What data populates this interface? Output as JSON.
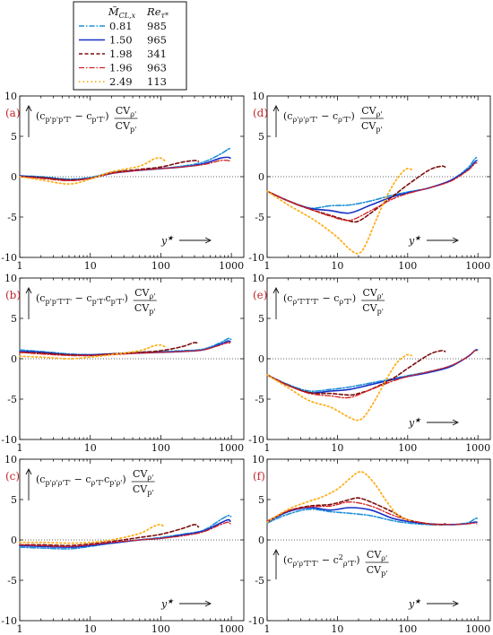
{
  "legend": {
    "header_mach": "M̃",
    "header_mach_sub": "CL,x",
    "header_re": "Re",
    "header_re_sub": "τ*",
    "entries": [
      {
        "mach": "0.81",
        "re": "985",
        "color": "#1f8fd6"
      },
      {
        "mach": "1.50",
        "re": "965",
        "color": "#1530c8"
      },
      {
        "mach": "1.98",
        "re": "341",
        "color": "#7a0d0d"
      },
      {
        "mach": "1.96",
        "re": "963",
        "color": "#d42020"
      },
      {
        "mach": "2.49",
        "re": "113",
        "color": "#ffae1a"
      }
    ]
  },
  "chart_data": [
    {
      "type": "line",
      "panel_label": "(a)",
      "annotation": "(c_{p'p'p'T'} − c_{p'T'}) CV_{ρ'}/CV_{p'}",
      "xlabel": "y*",
      "xscale": "log",
      "xlim": [
        1,
        1500
      ],
      "ylim": [
        -10,
        10
      ],
      "yticks": [
        10,
        5,
        0,
        -5,
        -10
      ],
      "xticks": [
        1,
        10,
        100,
        1000
      ],
      "series": [
        {
          "x": [
            1,
            2,
            5,
            10,
            20,
            50,
            100,
            200,
            400,
            700,
            900,
            985
          ],
          "y": [
            0.1,
            0.0,
            -0.3,
            -0.1,
            0.5,
            0.8,
            1.0,
            1.3,
            1.8,
            2.8,
            3.4,
            3.5
          ]
        },
        {
          "x": [
            1,
            2,
            5,
            10,
            20,
            50,
            100,
            200,
            400,
            700,
            900,
            965
          ],
          "y": [
            0.1,
            -0.1,
            -0.4,
            -0.2,
            0.4,
            0.8,
            1.0,
            1.2,
            1.6,
            2.3,
            2.4,
            2.3
          ]
        },
        {
          "x": [
            1,
            2,
            5,
            10,
            20,
            50,
            100,
            200,
            300,
            341
          ],
          "y": [
            0.0,
            -0.1,
            -0.4,
            -0.2,
            0.5,
            0.9,
            1.2,
            1.8,
            2.0,
            1.9
          ]
        },
        {
          "x": [
            1,
            2,
            5,
            10,
            20,
            50,
            100,
            200,
            400,
            700,
            900,
            963
          ],
          "y": [
            0.0,
            -0.2,
            -0.5,
            -0.2,
            0.4,
            0.8,
            1.0,
            1.2,
            1.5,
            2.0,
            2.0,
            1.9
          ]
        },
        {
          "x": [
            1,
            2,
            5,
            10,
            20,
            50,
            80,
            100,
            113
          ],
          "y": [
            0.0,
            -0.4,
            -0.9,
            -0.3,
            0.6,
            1.3,
            2.2,
            2.3,
            2.0
          ]
        }
      ]
    },
    {
      "type": "line",
      "panel_label": "(b)",
      "annotation": "(c_{p'p'T'T'} − c_{p'T'}c_{p'T'}) CV_{ρ'}/CV_{p'}",
      "xlabel": "",
      "xscale": "log",
      "xlim": [
        1,
        1500
      ],
      "ylim": [
        -10,
        10
      ],
      "yticks": [
        10,
        5,
        0,
        -5,
        -10
      ],
      "xticks": [
        1,
        10,
        100,
        1000
      ],
      "series": [
        {
          "x": [
            1,
            2,
            5,
            10,
            20,
            50,
            100,
            200,
            400,
            700,
            900,
            985
          ],
          "y": [
            1.1,
            0.9,
            0.6,
            0.5,
            0.6,
            0.8,
            0.9,
            1.0,
            1.2,
            2.0,
            2.5,
            2.4
          ]
        },
        {
          "x": [
            1,
            2,
            5,
            10,
            20,
            50,
            100,
            200,
            400,
            700,
            900,
            965
          ],
          "y": [
            0.9,
            0.8,
            0.5,
            0.5,
            0.6,
            0.7,
            0.8,
            0.9,
            1.1,
            1.8,
            2.2,
            2.1
          ]
        },
        {
          "x": [
            1,
            2,
            5,
            10,
            20,
            50,
            100,
            200,
            300,
            341
          ],
          "y": [
            0.8,
            0.7,
            0.5,
            0.4,
            0.6,
            0.8,
            1.0,
            1.5,
            2.0,
            1.8
          ]
        },
        {
          "x": [
            1,
            2,
            5,
            10,
            20,
            50,
            100,
            200,
            400,
            700,
            900,
            963
          ],
          "y": [
            0.8,
            0.6,
            0.4,
            0.4,
            0.5,
            0.7,
            0.8,
            0.9,
            1.1,
            1.7,
            2.0,
            1.9
          ]
        },
        {
          "x": [
            1,
            2,
            5,
            10,
            20,
            50,
            80,
            100,
            113
          ],
          "y": [
            0.3,
            0.2,
            0.0,
            0.2,
            0.5,
            1.0,
            1.6,
            1.7,
            1.5
          ]
        }
      ]
    },
    {
      "type": "line",
      "panel_label": "(c)",
      "annotation": "(c_{p'ρ'ρ'T'} − c_{ρ'T'}c_{p'ρ'}) CV_{ρ'}/CV_{p'}",
      "xlabel": "y*",
      "xscale": "log",
      "xlim": [
        1,
        1500
      ],
      "ylim": [
        -10,
        10
      ],
      "yticks": [
        10,
        5,
        0,
        -5,
        -10
      ],
      "xticks": [
        1,
        10,
        100,
        1000
      ],
      "series": [
        {
          "x": [
            1,
            2,
            5,
            10,
            20,
            50,
            100,
            200,
            400,
            700,
            900,
            985
          ],
          "y": [
            -0.9,
            -1.0,
            -1.1,
            -0.8,
            -0.4,
            0.0,
            0.3,
            0.7,
            1.2,
            2.5,
            3.0,
            2.9
          ]
        },
        {
          "x": [
            1,
            2,
            5,
            10,
            20,
            50,
            100,
            200,
            400,
            700,
            900,
            965
          ],
          "y": [
            -0.7,
            -0.8,
            -0.9,
            -0.7,
            -0.4,
            0.0,
            0.2,
            0.6,
            1.1,
            2.1,
            2.5,
            2.3
          ]
        },
        {
          "x": [
            1,
            2,
            5,
            10,
            20,
            50,
            100,
            200,
            300,
            341
          ],
          "y": [
            -0.6,
            -0.6,
            -0.7,
            -0.5,
            -0.2,
            0.3,
            0.7,
            1.4,
            1.9,
            1.6
          ]
        },
        {
          "x": [
            1,
            2,
            5,
            10,
            20,
            50,
            100,
            200,
            400,
            700,
            900,
            963
          ],
          "y": [
            -0.6,
            -0.7,
            -0.8,
            -0.6,
            -0.3,
            0.0,
            0.2,
            0.5,
            1.0,
            1.9,
            2.2,
            2.0
          ]
        },
        {
          "x": [
            1,
            2,
            5,
            10,
            20,
            50,
            80,
            100,
            113
          ],
          "y": [
            -0.3,
            -0.3,
            -0.4,
            -0.3,
            0.0,
            0.8,
            1.7,
            1.9,
            1.5
          ]
        }
      ]
    },
    {
      "type": "line",
      "panel_label": "(d)",
      "annotation": "(c_{ρ'ρ'ρ'T'} − c_{ρ'T'}) CV_{ρ'}/CV_{p'}",
      "xlabel": "y*",
      "xscale": "log",
      "xlim": [
        1,
        1500
      ],
      "ylim": [
        -10,
        10
      ],
      "yticks": [
        10,
        5,
        0,
        -5,
        -10
      ],
      "xticks": [
        1,
        10,
        100,
        1000
      ],
      "series": [
        {
          "x": [
            1,
            2,
            4,
            8,
            15,
            30,
            60,
            100,
            200,
            400,
            700,
            900,
            985
          ],
          "y": [
            -1.8,
            -3.0,
            -3.9,
            -3.6,
            -3.5,
            -3.0,
            -2.3,
            -1.9,
            -1.4,
            -0.5,
            1.0,
            2.2,
            2.4
          ]
        },
        {
          "x": [
            1,
            2,
            4,
            8,
            15,
            30,
            60,
            100,
            200,
            400,
            700,
            900,
            965
          ],
          "y": [
            -1.8,
            -3.0,
            -3.9,
            -4.2,
            -4.5,
            -3.5,
            -2.5,
            -2.0,
            -1.4,
            -0.5,
            0.8,
            1.8,
            2.0
          ]
        },
        {
          "x": [
            1,
            2,
            4,
            8,
            15,
            20,
            30,
            60,
            100,
            200,
            300,
            341
          ],
          "y": [
            -1.8,
            -3.0,
            -4.0,
            -4.8,
            -5.5,
            -5.5,
            -4.5,
            -2.5,
            -1.0,
            0.8,
            1.3,
            1.2
          ]
        },
        {
          "x": [
            1,
            2,
            4,
            8,
            15,
            30,
            60,
            100,
            200,
            400,
            700,
            900,
            963
          ],
          "y": [
            -1.8,
            -3.0,
            -4.0,
            -4.9,
            -5.4,
            -4.2,
            -2.8,
            -2.1,
            -1.4,
            -0.6,
            0.7,
            1.6,
            1.7
          ]
        },
        {
          "x": [
            1,
            2,
            4,
            6,
            10,
            15,
            20,
            25,
            35,
            50,
            70,
            90,
            100,
            113
          ],
          "y": [
            -1.8,
            -3.5,
            -5.0,
            -6.0,
            -7.5,
            -9.0,
            -9.5,
            -8.5,
            -5.5,
            -2.5,
            -0.3,
            0.8,
            1.0,
            0.9
          ]
        }
      ]
    },
    {
      "type": "line",
      "panel_label": "(e)",
      "annotation": "(c_{ρ'T'T'T'} − c_{ρ'T'}) CV_{ρ'}/CV_{p'}",
      "xlabel": "y*",
      "xscale": "log",
      "xlim": [
        1,
        1500
      ],
      "ylim": [
        -10,
        10
      ],
      "yticks": [
        10,
        5,
        0,
        -5,
        -10
      ],
      "xticks": [
        1,
        10,
        100,
        1000
      ],
      "series": [
        {
          "x": [
            1,
            2,
            4,
            8,
            15,
            30,
            60,
            100,
            200,
            400,
            700,
            900,
            985
          ],
          "y": [
            -2.0,
            -3.2,
            -4.0,
            -3.8,
            -3.5,
            -3.0,
            -2.5,
            -2.1,
            -1.6,
            -0.9,
            0.2,
            1.0,
            1.1
          ]
        },
        {
          "x": [
            1,
            2,
            4,
            8,
            15,
            30,
            60,
            100,
            200,
            400,
            700,
            900,
            965
          ],
          "y": [
            -2.0,
            -3.3,
            -4.2,
            -4.0,
            -3.8,
            -3.2,
            -2.6,
            -2.2,
            -1.7,
            -1.0,
            0.2,
            1.0,
            1.1
          ]
        },
        {
          "x": [
            1,
            2,
            4,
            8,
            15,
            20,
            30,
            60,
            100,
            200,
            300,
            341
          ],
          "y": [
            -2.0,
            -3.3,
            -4.2,
            -4.3,
            -4.5,
            -4.3,
            -3.8,
            -2.5,
            -1.2,
            0.5,
            1.0,
            0.9
          ]
        },
        {
          "x": [
            1,
            2,
            4,
            8,
            15,
            30,
            60,
            100,
            200,
            400,
            700,
            900,
            963
          ],
          "y": [
            -2.0,
            -3.3,
            -4.3,
            -4.6,
            -4.8,
            -3.8,
            -2.8,
            -2.2,
            -1.6,
            -0.9,
            0.2,
            1.0,
            1.0
          ]
        },
        {
          "x": [
            1,
            2,
            4,
            8,
            15,
            20,
            25,
            35,
            50,
            70,
            90,
            100,
            113
          ],
          "y": [
            -2.0,
            -3.6,
            -5.2,
            -6.0,
            -7.3,
            -7.6,
            -7.0,
            -5.0,
            -2.5,
            -0.5,
            0.3,
            0.5,
            0.4
          ]
        }
      ]
    },
    {
      "type": "line",
      "panel_label": "(f)",
      "annotation": "(c_{ρ'ρ'T'T'} − c²_{ρ'T'}) CV_{ρ'}/CV_{p'}",
      "xlabel": "y*",
      "xscale": "log",
      "xlim": [
        1,
        1500
      ],
      "ylim": [
        -10,
        10
      ],
      "yticks": [
        10,
        5,
        0,
        -5,
        -10
      ],
      "xticks": [
        1,
        10,
        100,
        1000
      ],
      "series": [
        {
          "x": [
            1,
            2,
            4,
            8,
            15,
            30,
            60,
            100,
            200,
            400,
            700,
            900,
            985
          ],
          "y": [
            2.1,
            3.2,
            3.8,
            3.5,
            3.3,
            3.0,
            2.4,
            2.1,
            1.9,
            1.9,
            2.1,
            2.6,
            2.7
          ]
        },
        {
          "x": [
            1,
            2,
            4,
            8,
            15,
            30,
            60,
            100,
            200,
            400,
            700,
            900,
            965
          ],
          "y": [
            2.2,
            3.5,
            4.0,
            3.7,
            4.0,
            3.7,
            2.7,
            2.3,
            2.0,
            1.9,
            2.0,
            2.2,
            2.2
          ]
        },
        {
          "x": [
            1,
            2,
            4,
            8,
            15,
            20,
            30,
            60,
            100,
            200,
            300,
            341
          ],
          "y": [
            2.3,
            3.6,
            4.2,
            4.4,
            5.0,
            5.2,
            4.7,
            3.5,
            2.5,
            2.0,
            1.9,
            2.0
          ]
        },
        {
          "x": [
            1,
            2,
            4,
            8,
            15,
            30,
            60,
            100,
            200,
            400,
            700,
            900,
            963
          ],
          "y": [
            2.3,
            3.6,
            4.1,
            4.2,
            4.7,
            4.2,
            3.1,
            2.5,
            2.0,
            1.9,
            2.0,
            2.1,
            2.0
          ]
        },
        {
          "x": [
            1,
            2,
            4,
            6,
            10,
            15,
            20,
            25,
            35,
            50,
            70,
            100,
            113
          ],
          "y": [
            2.2,
            3.8,
            4.8,
            5.3,
            6.3,
            7.6,
            8.4,
            8.2,
            6.8,
            4.8,
            3.2,
            2.5,
            2.4
          ]
        }
      ]
    }
  ]
}
